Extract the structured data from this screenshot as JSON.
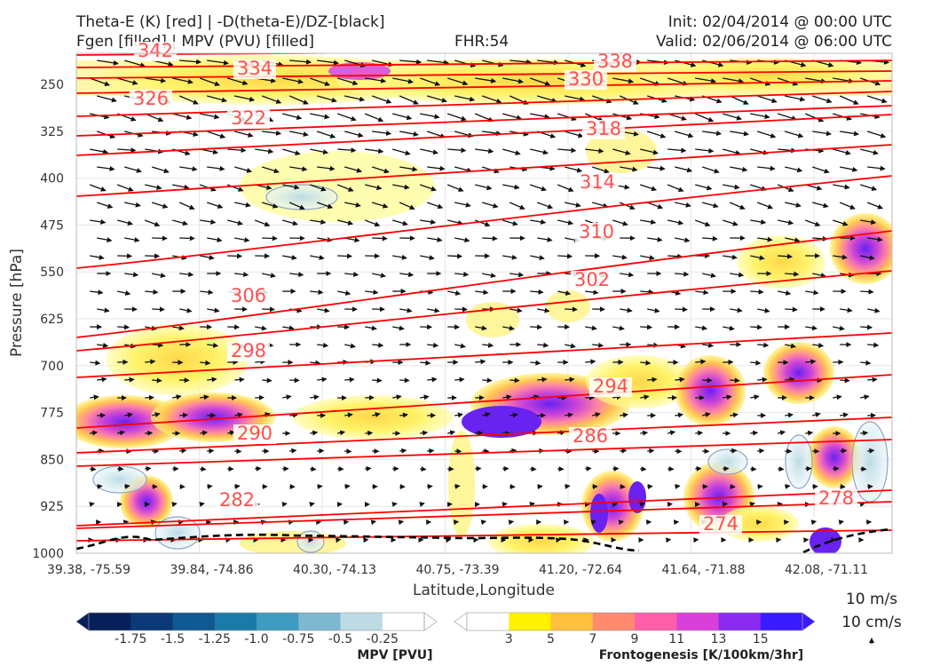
{
  "header": {
    "title_line1": "Theta-E (K) [red] | -D(theta-E)/DZ-[black]",
    "title_line2": "Fgen [filled] | MPV (PVU) [filled]",
    "fhr": "FHR:54",
    "init": "Init: 02/04/2014 @ 00:00 UTC",
    "valid": "Valid: 02/06/2014 @ 06:00 UTC"
  },
  "chart_data": {
    "type": "cross-section",
    "xlabel": "Latitude,Longitude",
    "ylabel": "Pressure [hPa]",
    "x_ticks": [
      "39.38, -75.59",
      "39.84, -74.86",
      "40.30, -74.13",
      "40.75, -73.39",
      "41.20, -72.64",
      "41.64, -71.88",
      "42.08, -71.11"
    ],
    "y_ticks": [
      250,
      325,
      400,
      475,
      550,
      625,
      700,
      775,
      850,
      925,
      1000
    ],
    "ylim": [
      1000,
      200
    ],
    "y_scale": "pressure (log)",
    "grid": true,
    "theta_e_contours": [
      {
        "level": 342,
        "label": "342"
      },
      {
        "level": 338,
        "label": "338"
      },
      {
        "level": 334,
        "label": "334"
      },
      {
        "level": 330,
        "label": "330"
      },
      {
        "level": 326,
        "label": "326"
      },
      {
        "level": 322,
        "label": "322"
      },
      {
        "level": 318,
        "label": "318"
      },
      {
        "level": 314,
        "label": "314"
      },
      {
        "level": 310,
        "label": "310"
      },
      {
        "level": 306,
        "label": "306"
      },
      {
        "level": 302,
        "label": "302"
      },
      {
        "level": 298,
        "label": "298"
      },
      {
        "level": 294,
        "label": "294"
      },
      {
        "level": 290,
        "label": "290"
      },
      {
        "level": 286,
        "label": "286"
      },
      {
        "level": 282,
        "label": "282"
      },
      {
        "level": 278,
        "label": "278"
      },
      {
        "level": 274,
        "label": "274"
      }
    ],
    "theta_e_color": "#ff0000",
    "stability_contour_color": "#000000",
    "mpv_colorbar": {
      "title": "MPV [PVU]",
      "ticks": [
        "-1.75",
        "-1.5",
        "-1.25",
        "-1.0",
        "-0.75",
        "-0.5",
        "-0.25"
      ],
      "colors": [
        "#08205a",
        "#0c3a78",
        "#0f5891",
        "#1a7ba8",
        "#3f9bbf",
        "#7db8d0",
        "#bcdbe5",
        "#ffffff"
      ]
    },
    "fgen_colorbar": {
      "title": "Frontogenesis [K/100km/3hr]",
      "ticks": [
        "3",
        "5",
        "7",
        "9",
        "11",
        "13",
        "15"
      ],
      "colors": [
        "#ffffff",
        "#fff200",
        "#ffc040",
        "#ff8a70",
        "#ff5fa8",
        "#d940d9",
        "#8a2cf0",
        "#3a1aff"
      ]
    },
    "wind_reference": {
      "horizontal": "10 m/s",
      "vertical": "10 cm/s"
    }
  }
}
